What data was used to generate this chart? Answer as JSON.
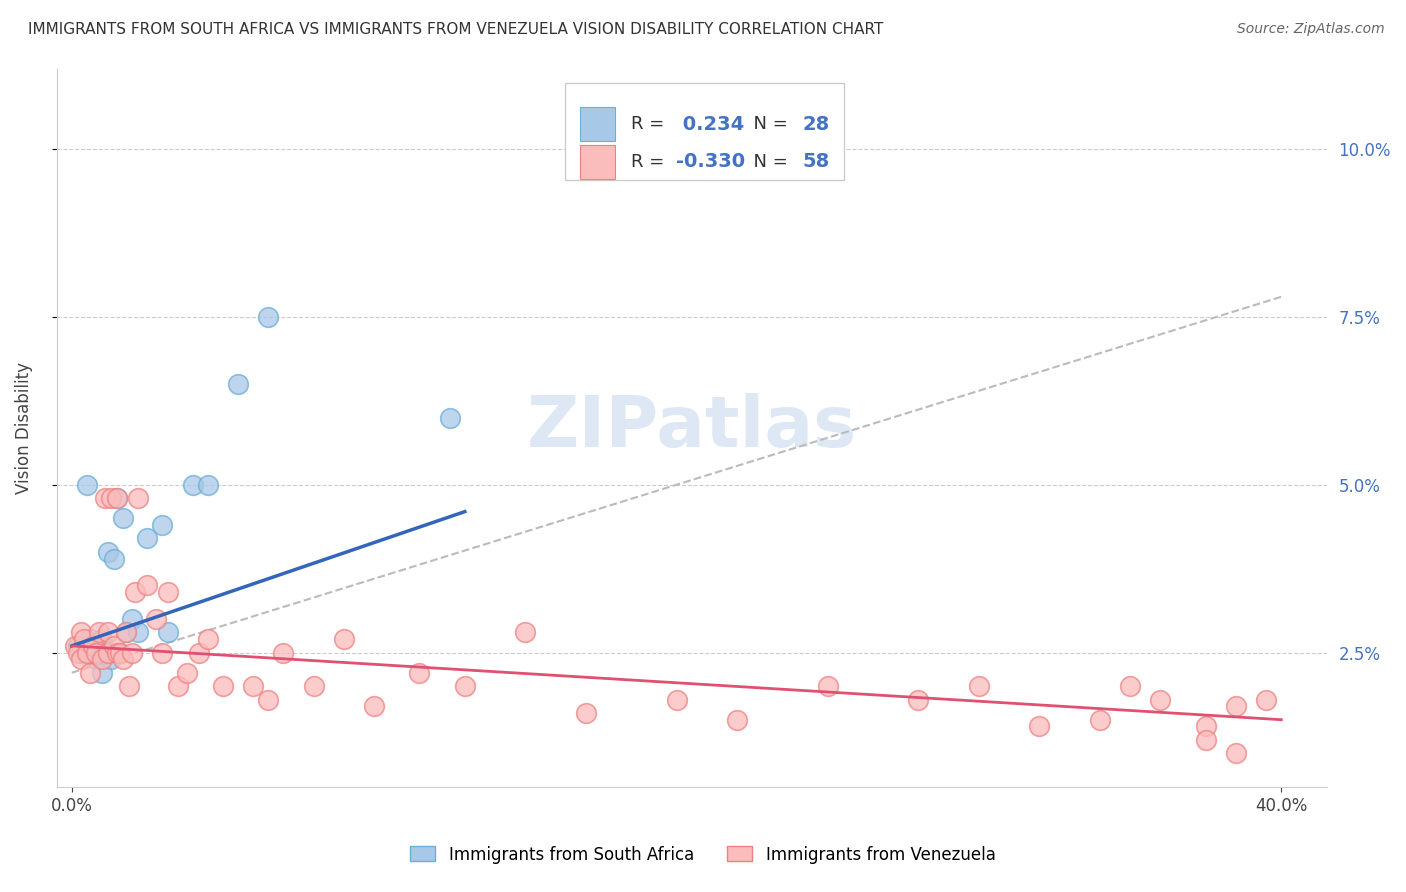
{
  "title": "IMMIGRANTS FROM SOUTH AFRICA VS IMMIGRANTS FROM VENEZUELA VISION DISABILITY CORRELATION CHART",
  "source": "Source: ZipAtlas.com",
  "ylabel": "Vision Disability",
  "yticks": [
    0.025,
    0.05,
    0.075,
    0.1
  ],
  "xticks": [
    0.0,
    0.4
  ],
  "xlim": [
    -0.005,
    0.415
  ],
  "ylim": [
    0.005,
    0.112
  ],
  "south_africa_r": 0.234,
  "south_africa_n": 28,
  "venezuela_r": -0.33,
  "venezuela_n": 58,
  "south_africa_dot_color": "#a8c8e8",
  "south_africa_edge_color": "#6baed6",
  "venezuela_dot_color": "#fbbcbc",
  "venezuela_edge_color": "#f08080",
  "south_africa_line_color": "#3366bb",
  "venezuela_line_color": "#e05070",
  "trend_line_color": "#bbbbbb",
  "background_color": "#ffffff",
  "watermark": "ZIPatlas",
  "legend_sa_color": "#a8c8e8",
  "legend_ven_color": "#fbbcbc",
  "south_africa_x": [
    0.002,
    0.003,
    0.004,
    0.005,
    0.006,
    0.007,
    0.008,
    0.009,
    0.01,
    0.01,
    0.011,
    0.012,
    0.013,
    0.014,
    0.015,
    0.016,
    0.017,
    0.018,
    0.02,
    0.022,
    0.025,
    0.03,
    0.032,
    0.04,
    0.045,
    0.055,
    0.065,
    0.125
  ],
  "south_africa_y": [
    0.026,
    0.025,
    0.026,
    0.05,
    0.027,
    0.025,
    0.024,
    0.026,
    0.027,
    0.022,
    0.025,
    0.04,
    0.024,
    0.039,
    0.048,
    0.025,
    0.045,
    0.028,
    0.03,
    0.028,
    0.042,
    0.044,
    0.028,
    0.05,
    0.05,
    0.065,
    0.075,
    0.06
  ],
  "venezuela_x": [
    0.001,
    0.002,
    0.003,
    0.003,
    0.004,
    0.005,
    0.006,
    0.007,
    0.008,
    0.009,
    0.01,
    0.011,
    0.012,
    0.012,
    0.013,
    0.014,
    0.015,
    0.015,
    0.016,
    0.017,
    0.018,
    0.019,
    0.02,
    0.021,
    0.022,
    0.025,
    0.028,
    0.03,
    0.032,
    0.035,
    0.038,
    0.042,
    0.045,
    0.05,
    0.06,
    0.065,
    0.07,
    0.08,
    0.09,
    0.1,
    0.115,
    0.13,
    0.15,
    0.17,
    0.2,
    0.22,
    0.25,
    0.28,
    0.3,
    0.32,
    0.35,
    0.36,
    0.375,
    0.385,
    0.395,
    0.385,
    0.375,
    0.34
  ],
  "venezuela_y": [
    0.026,
    0.025,
    0.024,
    0.028,
    0.027,
    0.025,
    0.022,
    0.026,
    0.025,
    0.028,
    0.024,
    0.048,
    0.025,
    0.028,
    0.048,
    0.026,
    0.025,
    0.048,
    0.025,
    0.024,
    0.028,
    0.02,
    0.025,
    0.034,
    0.048,
    0.035,
    0.03,
    0.025,
    0.034,
    0.02,
    0.022,
    0.025,
    0.027,
    0.02,
    0.02,
    0.018,
    0.025,
    0.02,
    0.027,
    0.017,
    0.022,
    0.02,
    0.028,
    0.016,
    0.018,
    0.015,
    0.02,
    0.018,
    0.02,
    0.014,
    0.02,
    0.018,
    0.014,
    0.017,
    0.018,
    0.01,
    0.012,
    0.015
  ],
  "sa_trendline_x0": 0.0,
  "sa_trendline_y0": 0.026,
  "sa_trendline_x1": 0.13,
  "sa_trendline_y1": 0.046,
  "ven_trendline_x0": 0.0,
  "ven_trendline_y0": 0.026,
  "ven_trendline_x1": 0.4,
  "ven_trendline_y1": 0.015,
  "gray_trendline_x0": 0.0,
  "gray_trendline_y0": 0.022,
  "gray_trendline_x1": 0.4,
  "gray_trendline_y1": 0.078
}
